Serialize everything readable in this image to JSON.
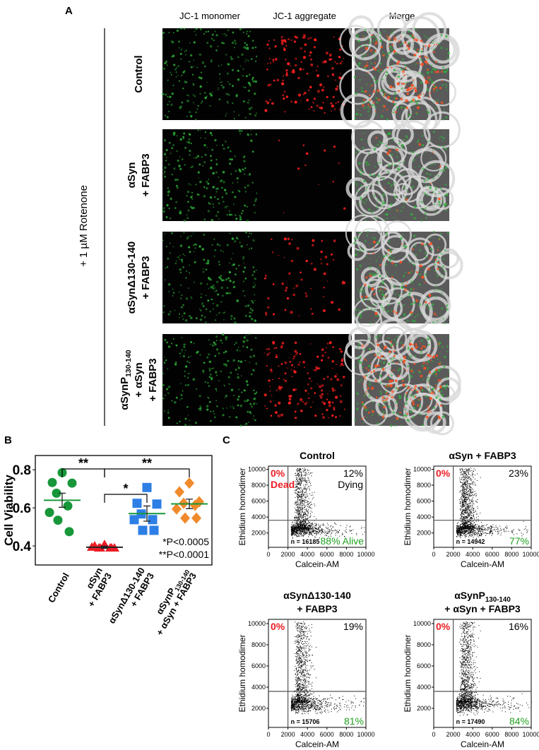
{
  "panel_a": {
    "label": "A",
    "columns": [
      "JC-1 monomer",
      "JC-1 aggregate",
      "Merge"
    ],
    "side_label": "+ 1 µM Rotenone",
    "rows": [
      [
        "Control"
      ],
      [
        "αSyn",
        "+ FABP3"
      ],
      [
        "αSynΔ130-140",
        "+ FABP3"
      ],
      [
        {
          "text": "αSynP",
          "sub": "130-140"
        },
        "+ αSyn",
        "+ FABP3"
      ]
    ]
  },
  "panel_b": {
    "label": "B",
    "chart_data": {
      "type": "dot",
      "ylabel": "Cell  Viability",
      "ylim": [
        0.3,
        0.875
      ],
      "yticks": [
        0.4,
        0.6,
        0.8
      ],
      "groups": [
        {
          "label": [
            "Control"
          ],
          "color": "#17973a",
          "marker": "circle",
          "values": [
            0.785,
            0.733,
            0.73,
            0.677,
            0.61,
            0.576,
            0.535,
            0.475
          ],
          "mean": 0.64,
          "sem": 0.037
        },
        {
          "label": [
            "αSyn",
            "+ FABP3"
          ],
          "color": "#ec1c24",
          "marker": "triangle",
          "values": [
            0.407,
            0.4,
            0.389,
            0.389,
            0.389,
            0.393,
            0.389,
            0.389
          ],
          "mean": 0.393,
          "sem": 0.006
        },
        {
          "label": [
            "αSynΔ130-140",
            "+ FABP3"
          ],
          "color": "#2d7fe6",
          "marker": "square",
          "values": [
            0.707,
            0.624,
            0.62,
            0.568,
            0.538,
            0.538,
            0.482,
            0.482
          ],
          "mean": 0.57,
          "sem": 0.04
        },
        {
          "label": [
            {
              "text": "αSynP",
              "sub": "130-140"
            },
            "+ αSyn + FABP3"
          ],
          "color": "#f08a2b",
          "marker": "diamond",
          "values": [
            0.73,
            0.684,
            0.632,
            0.624,
            0.613,
            0.594,
            0.546,
            0.546
          ],
          "mean": 0.621,
          "sem": 0.025
        }
      ],
      "comparisons": [
        "**",
        "*",
        "**"
      ],
      "notes": [
        "*P<0.0005",
        "**P<0.0001"
      ]
    }
  },
  "panel_c": {
    "label": "C",
    "chart_data": {
      "type": "scatter",
      "xlabel": "Calcein-AM",
      "ylabel": "Ethidium homodimer",
      "xlim": [
        0,
        10000
      ],
      "ylim": [
        200,
        10400
      ],
      "xticks": [
        0,
        2000,
        4000,
        6000,
        8000,
        10000
      ],
      "yticks": [
        2000,
        4000,
        6000,
        8000,
        10000
      ],
      "gate": [
        2000,
        3600
      ],
      "plots": [
        {
          "title": [
            "Control"
          ],
          "dead": "0%",
          "dead_label": "Dead",
          "dying": "12%",
          "dying_label": "Dying",
          "alive": "88% Alive",
          "n": "n = 16185"
        },
        {
          "title": [
            "αSyn + FABP3"
          ],
          "dead": "0%",
          "dying": "23%",
          "alive": "77%",
          "n": "n = 14942"
        },
        {
          "title": [
            "αSynΔ130-140",
            "+ FABP3"
          ],
          "dead": "0%",
          "dying": "19%",
          "alive": "81%",
          "n": "n = 15706"
        },
        {
          "title": [
            {
              "text": "αSynP",
              "sub": "130-140"
            },
            "+ αSyn + FABP3"
          ],
          "dead": "0%",
          "dying": "16%",
          "alive": "84%",
          "n": "n = 17490"
        }
      ]
    }
  }
}
